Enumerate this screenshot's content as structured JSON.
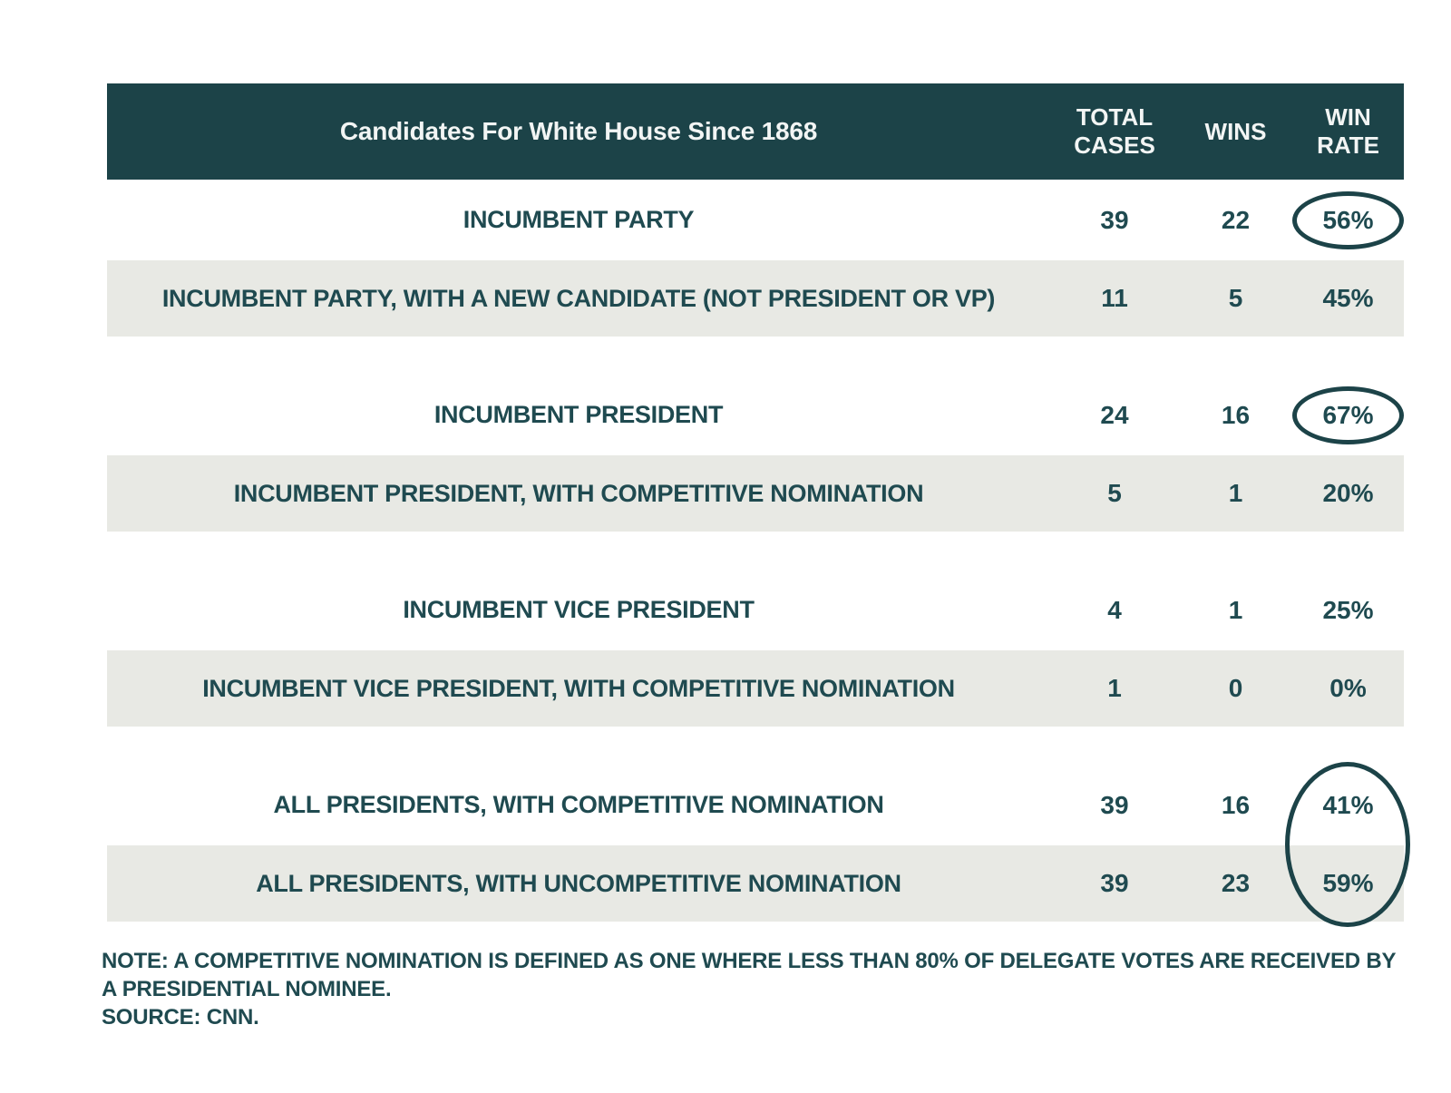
{
  "colors": {
    "header_bg": "#1c4348",
    "header_text": "#f2f5f4",
    "body_text": "#1f4a50",
    "shaded_row_bg": "#e8e9e4",
    "circle_stroke": "#1c4348"
  },
  "chart_data": {
    "type": "table",
    "title": "Candidates For White House Since 1868",
    "columns": [
      "TOTAL CASES",
      "WINS",
      "WIN RATE"
    ],
    "rows": [
      {
        "label": "INCUMBENT PARTY",
        "total_cases": "39",
        "wins": "22",
        "win_rate": "56%",
        "circled": true
      },
      {
        "label": "INCUMBENT PARTY, WITH A NEW CANDIDATE (NOT PRESIDENT OR VP)",
        "total_cases": "11",
        "wins": "5",
        "win_rate": "45%",
        "circled": false
      },
      {
        "label": "INCUMBENT PRESIDENT",
        "total_cases": "24",
        "wins": "16",
        "win_rate": "67%",
        "circled": true
      },
      {
        "label": "INCUMBENT PRESIDENT, WITH COMPETITIVE NOMINATION",
        "total_cases": "5",
        "wins": "1",
        "win_rate": "20%",
        "circled": false
      },
      {
        "label": "INCUMBENT VICE PRESIDENT",
        "total_cases": "4",
        "wins": "1",
        "win_rate": "25%",
        "circled": false
      },
      {
        "label": "INCUMBENT VICE PRESIDENT, WITH COMPETITIVE NOMINATION",
        "total_cases": "1",
        "wins": "0",
        "win_rate": "0%",
        "circled": false
      },
      {
        "label": "ALL PRESIDENTS, WITH COMPETITIVE NOMINATION",
        "total_cases": "39",
        "wins": "16",
        "win_rate": "41%",
        "circled": false
      },
      {
        "label": "ALL PRESIDENTS, WITH UNCOMPETITIVE NOMINATION",
        "total_cases": "39",
        "wins": "23",
        "win_rate": "59%",
        "circled": false
      }
    ],
    "annotations": {
      "circled_win_rates": [
        "56%",
        "67%"
      ],
      "combined_circle_win_rates": [
        "41%",
        "59%"
      ]
    },
    "note": "NOTE: A COMPETITIVE NOMINATION IS DEFINED AS ONE WHERE LESS THAN 80% OF DELEGATE VOTES ARE RECEIVED BY A PRESIDENTIAL NOMINEE.",
    "source": "SOURCE: CNN."
  }
}
